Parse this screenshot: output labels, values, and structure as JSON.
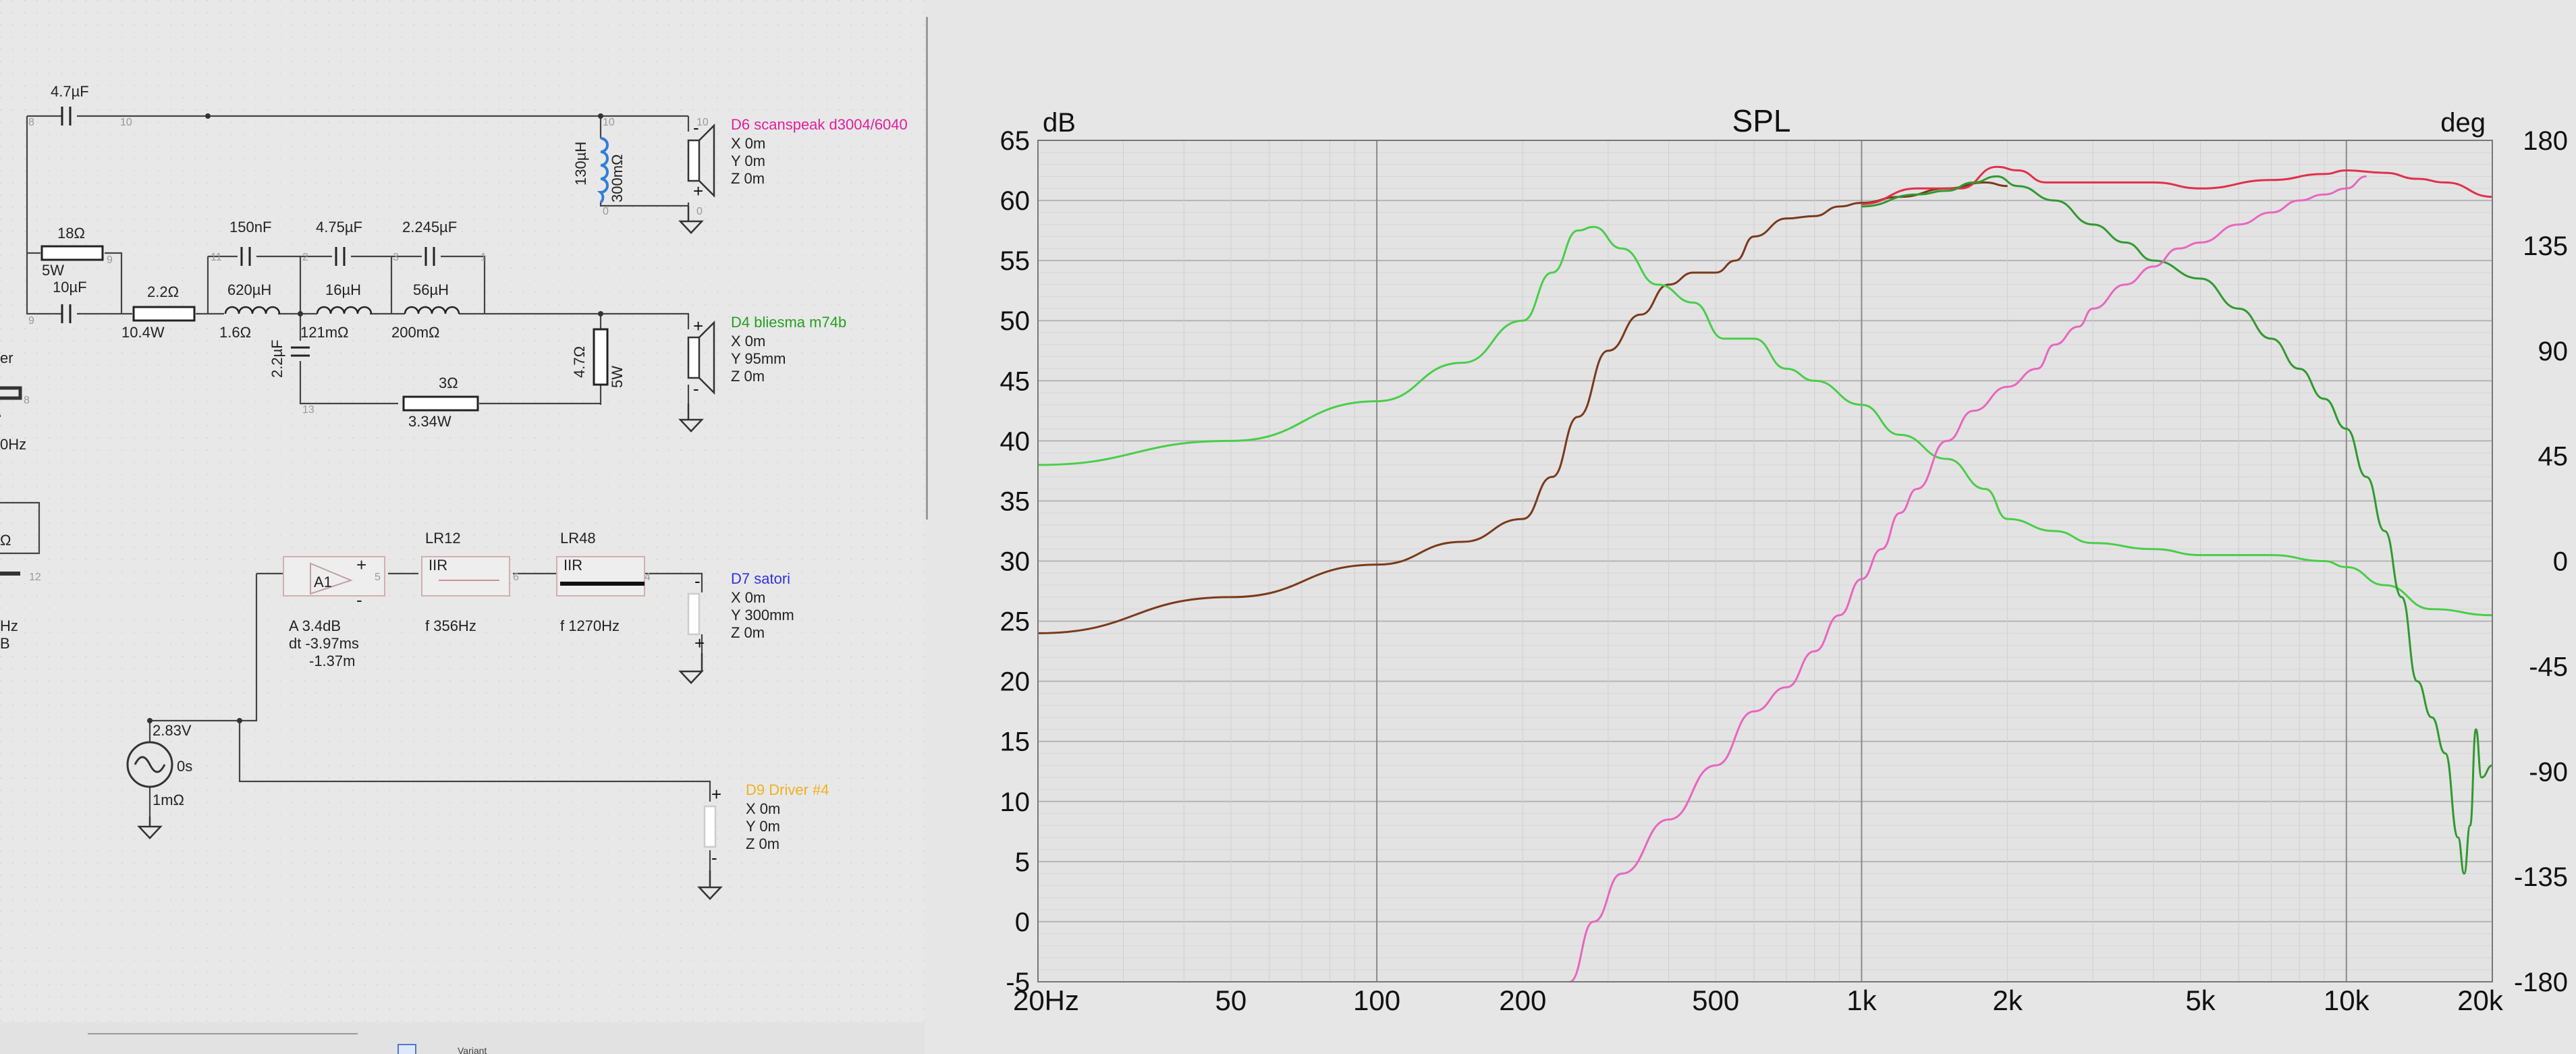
{
  "schematic": {
    "components": {
      "c1": "4.7µF",
      "r1": "18Ω",
      "r1_power": "5W",
      "c2": "10µF",
      "r2": "2.2Ω",
      "r2_power": "10.4W",
      "c3": "150nF",
      "c4": "4.75µF",
      "c5": "2.245µF",
      "l1": "620µH",
      "l1_r": "1.6Ω",
      "l2": "16µH",
      "l2_r": "121mΩ",
      "l3": "56µH",
      "l3_r": "200mΩ",
      "c6": "2.2µF",
      "r3": "3Ω",
      "r3_power": "3.34W",
      "r4": "4.7Ω",
      "r4_power": "5W",
      "l4": "130µH",
      "l4_r": "300mΩ"
    },
    "pin_labels": [
      "8",
      "10",
      "11",
      "2",
      "3",
      "1",
      "9",
      "12",
      "13",
      "6",
      "5",
      "4",
      "7",
      "0"
    ],
    "drivers": [
      {
        "name": "D6 scanspeak d3004/6040",
        "color": "#e0209a",
        "x": "X 0m",
        "y": "Y 0m",
        "z": "Z 0m"
      },
      {
        "name": "D4 bliesma m74b",
        "color": "#22a020",
        "x": "X 0m",
        "y": "Y 95mm",
        "z": "Z 0m"
      },
      {
        "name": "D7 satori",
        "color": "#3030e0",
        "x": "X 0m",
        "y": "Y 300mm",
        "z": "Z 0m"
      },
      {
        "name": "D9 Driver #4",
        "color": "#f0b020",
        "x": "X 0m",
        "y": "Y 0m",
        "z": "Z 0m"
      }
    ],
    "amp": {
      "name": "A1",
      "gain": "A  3.4dB",
      "delay": "dt  -3.97ms",
      "dist": "-1.37m"
    },
    "filters": [
      {
        "title": "LR12",
        "type": "IIR",
        "freq": "f   356Hz"
      },
      {
        "title": "LR48",
        "type": "IIR",
        "freq": "f   1270Hz"
      }
    ],
    "source": {
      "volt": "2.83V",
      "time": "0s",
      "res": "1mΩ"
    },
    "left_fragments": {
      "er": "er",
      "hz1": "0Hz",
      "omega": "Ω",
      "hz2": "Hz",
      "b": "B"
    },
    "status": {
      "variant": "Variant"
    }
  },
  "graph": {
    "title": "SPL",
    "left_unit": "dB",
    "right_unit": "deg",
    "y_ticks": [
      "65",
      "60",
      "55",
      "50",
      "45",
      "40",
      "35",
      "30",
      "25",
      "20",
      "15",
      "10",
      "5",
      "0",
      "-5"
    ],
    "y2_ticks": [
      "180",
      "135",
      "90",
      "45",
      "0",
      "-45",
      "-90",
      "-135",
      "-180"
    ],
    "x_ticks": [
      "20Hz",
      "50",
      "100",
      "200",
      "500",
      "1k",
      "2k",
      "5k",
      "10k",
      "20k"
    ]
  },
  "chart_data": {
    "type": "line",
    "title": "SPL",
    "xlabel": "Hz",
    "ylabel": "dB",
    "y2label": "deg",
    "xscale": "log",
    "xlim": [
      20,
      20000
    ],
    "ylim": [
      -5,
      65
    ],
    "y2lim": [
      -180,
      180
    ],
    "grid": true,
    "series": [
      {
        "color": "#7a3a1a",
        "points": [
          [
            20,
            24
          ],
          [
            50,
            27
          ],
          [
            100,
            29.7
          ],
          [
            150,
            31.6
          ],
          [
            200,
            33.5
          ],
          [
            230,
            37
          ],
          [
            260,
            42
          ],
          [
            300,
            47.5
          ],
          [
            350,
            50.5
          ],
          [
            400,
            53
          ],
          [
            450,
            54
          ],
          [
            500,
            54
          ],
          [
            550,
            55
          ],
          [
            600,
            57
          ],
          [
            700,
            58.5
          ],
          [
            800,
            58.7
          ],
          [
            900,
            59.5
          ],
          [
            1000,
            59.8
          ],
          [
            1200,
            60.3
          ],
          [
            1500,
            61
          ],
          [
            1800,
            61.5
          ],
          [
            2000,
            61.2
          ]
        ]
      },
      {
        "color": "#e0304a",
        "points": [
          [
            1000,
            59.7
          ],
          [
            1300,
            61
          ],
          [
            1600,
            61
          ],
          [
            1900,
            62.8
          ],
          [
            2100,
            62.5
          ],
          [
            2400,
            61.5
          ],
          [
            3000,
            61.5
          ],
          [
            4000,
            61.5
          ],
          [
            5000,
            61
          ],
          [
            7000,
            61.7
          ],
          [
            9000,
            62.2
          ],
          [
            10000,
            62.5
          ],
          [
            12000,
            62.3
          ],
          [
            14000,
            61.8
          ],
          [
            16000,
            61.5
          ],
          [
            20000,
            60.3
          ]
        ]
      },
      {
        "color": "#48ce48",
        "points": [
          [
            20,
            38
          ],
          [
            50,
            40
          ],
          [
            100,
            43.3
          ],
          [
            150,
            46.5
          ],
          [
            200,
            50
          ],
          [
            230,
            54
          ],
          [
            260,
            57.5
          ],
          [
            280,
            57.8
          ],
          [
            320,
            56
          ],
          [
            380,
            53
          ],
          [
            450,
            51.5
          ],
          [
            520,
            48.5
          ],
          [
            600,
            48.5
          ],
          [
            700,
            46
          ],
          [
            800,
            45
          ],
          [
            1000,
            43
          ],
          [
            1200,
            40.5
          ],
          [
            1500,
            38.5
          ],
          [
            1800,
            36
          ],
          [
            2000,
            33.5
          ],
          [
            2500,
            32.5
          ],
          [
            3000,
            31.5
          ],
          [
            4000,
            31
          ],
          [
            5000,
            30.5
          ],
          [
            7000,
            30.5
          ],
          [
            9000,
            30
          ],
          [
            10000,
            29.5
          ],
          [
            12000,
            28
          ],
          [
            15000,
            26
          ],
          [
            20000,
            25.5
          ]
        ]
      },
      {
        "color": "#2f9a2f",
        "points": [
          [
            1000,
            59.5
          ],
          [
            1300,
            60.5
          ],
          [
            1500,
            60.8
          ],
          [
            1700,
            61.5
          ],
          [
            1900,
            62
          ],
          [
            2100,
            61.2
          ],
          [
            2500,
            60
          ],
          [
            3000,
            58
          ],
          [
            3500,
            56.5
          ],
          [
            4000,
            55
          ],
          [
            5000,
            53.5
          ],
          [
            6000,
            51
          ],
          [
            7000,
            48.5
          ],
          [
            8000,
            46
          ],
          [
            9000,
            43.5
          ],
          [
            10000,
            41
          ],
          [
            11000,
            37
          ],
          [
            12000,
            32.5
          ],
          [
            13000,
            27
          ],
          [
            14000,
            20
          ],
          [
            15000,
            17
          ],
          [
            16000,
            14
          ],
          [
            17000,
            7
          ],
          [
            17500,
            4
          ],
          [
            18000,
            8
          ],
          [
            18500,
            16
          ],
          [
            19000,
            12
          ],
          [
            20000,
            13
          ]
        ]
      },
      {
        "color": "#e866bf",
        "points": [
          [
            250,
            -5
          ],
          [
            280,
            0
          ],
          [
            320,
            4
          ],
          [
            400,
            8.5
          ],
          [
            500,
            13
          ],
          [
            600,
            17.5
          ],
          [
            700,
            19.5
          ],
          [
            800,
            22.5
          ],
          [
            900,
            25.5
          ],
          [
            1000,
            28.5
          ],
          [
            1100,
            31
          ],
          [
            1200,
            34
          ],
          [
            1300,
            36
          ],
          [
            1500,
            40
          ],
          [
            1700,
            42.5
          ],
          [
            2000,
            44.5
          ],
          [
            2300,
            46
          ],
          [
            2500,
            48
          ],
          [
            2800,
            49.5
          ],
          [
            3000,
            51
          ],
          [
            3500,
            53
          ],
          [
            4000,
            54.5
          ],
          [
            4500,
            56
          ],
          [
            5000,
            56.5
          ],
          [
            6000,
            58
          ],
          [
            7000,
            59
          ],
          [
            8000,
            60
          ],
          [
            9000,
            60.5
          ],
          [
            10000,
            61
          ],
          [
            11000,
            62
          ]
        ]
      }
    ]
  }
}
